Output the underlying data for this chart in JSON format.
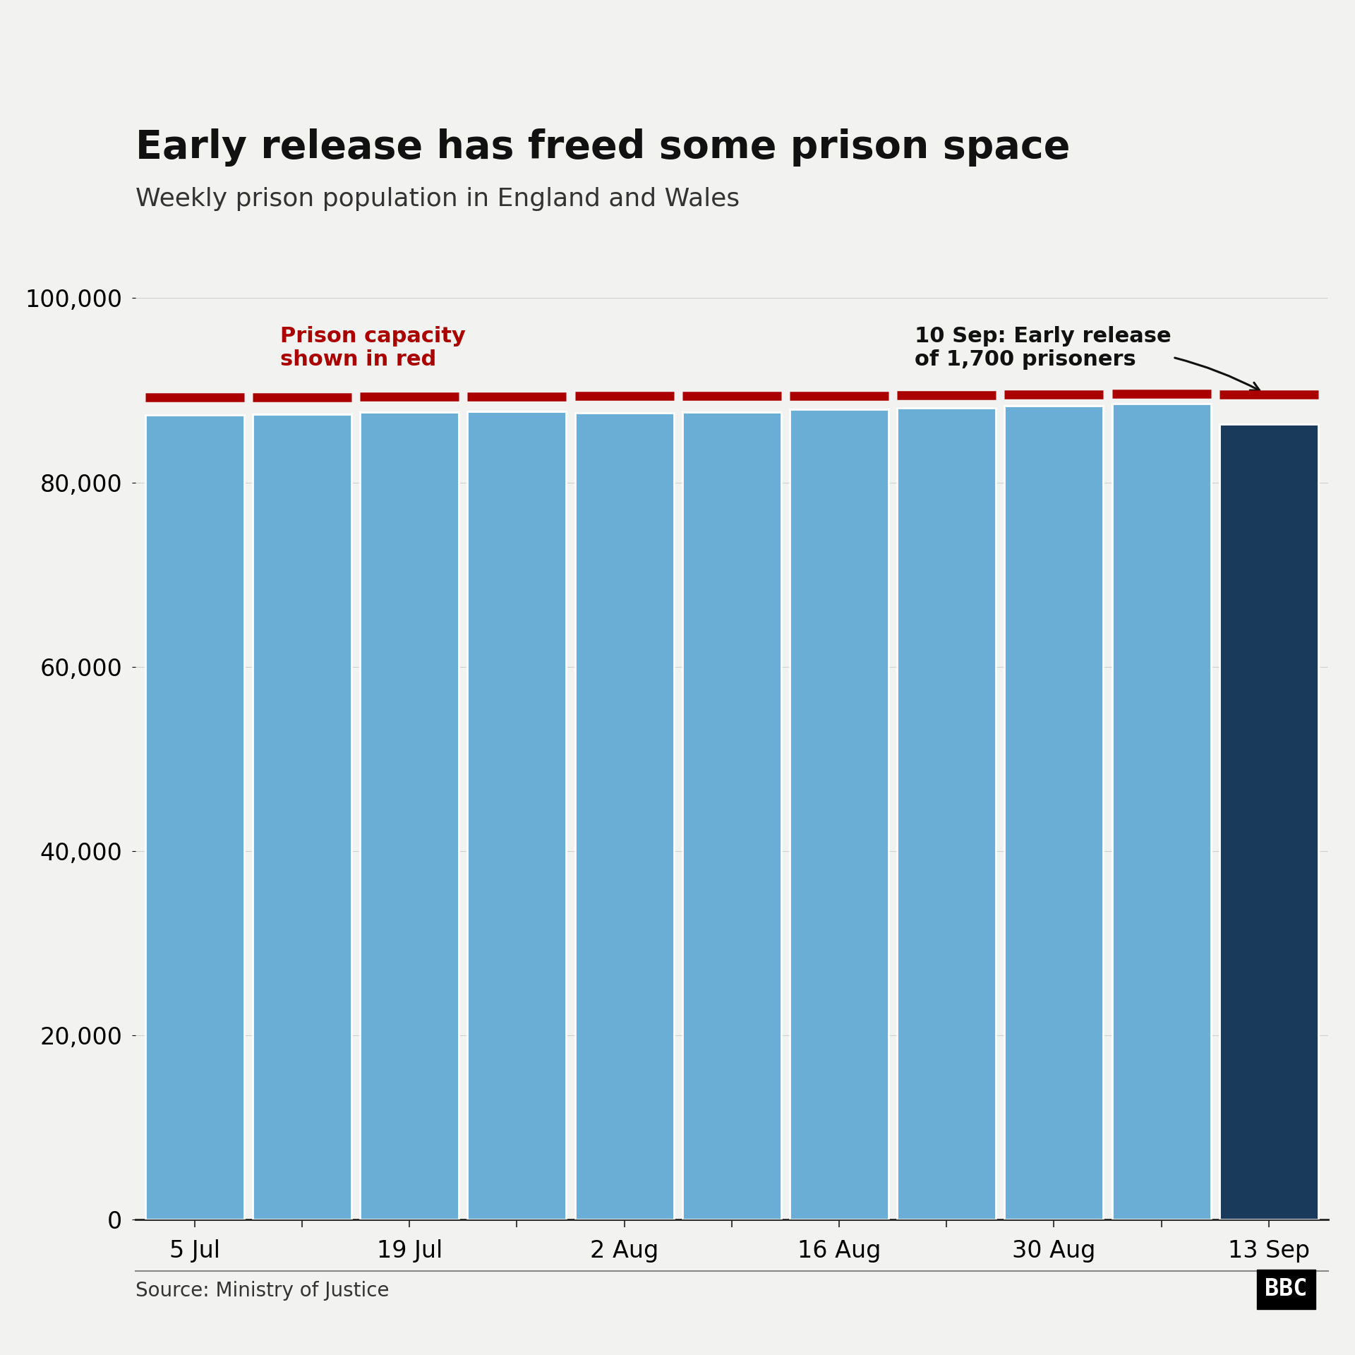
{
  "title": "Early release has freed some prison space",
  "subtitle": "Weekly prison population in England and Wales",
  "source": "Source: Ministry of Justice",
  "background_color": "#f2f2f0",
  "bar_labels": [
    "5 Jul",
    "",
    "19 Jul",
    "",
    "2 Aug",
    "",
    "16 Aug",
    "",
    "30 Aug",
    "",
    "13 Sep"
  ],
  "population": [
    87321,
    87400,
    87650,
    87700,
    87550,
    87600,
    87900,
    88100,
    88300,
    88521,
    86333
  ],
  "capacity": [
    89200,
    89250,
    89280,
    89300,
    89350,
    89380,
    89420,
    89450,
    89500,
    89619,
    89552
  ],
  "bar_colors": [
    "#6aaed6",
    "#6aaed6",
    "#6aaed6",
    "#6aaed6",
    "#6aaed6",
    "#6aaed6",
    "#6aaed6",
    "#6aaed6",
    "#6aaed6",
    "#6aaed6",
    "#1a3a5c"
  ],
  "capacity_color": "#aa0000",
  "ylim": [
    0,
    100000
  ],
  "yticks": [
    0,
    20000,
    40000,
    60000,
    80000,
    100000
  ],
  "annotation_capacity_text": "Prison capacity\nshown in red",
  "annotation_release_text": "10 Sep: Early release\nof 1,700 prisoners",
  "title_fontsize": 40,
  "subtitle_fontsize": 26,
  "tick_fontsize": 24,
  "source_fontsize": 20,
  "annot_fontsize": 22
}
